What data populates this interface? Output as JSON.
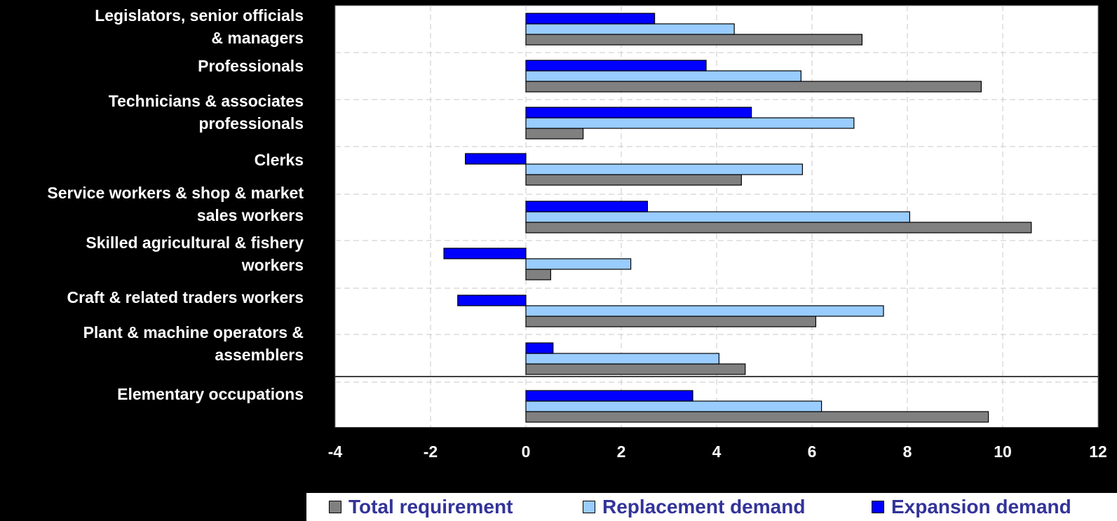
{
  "chart_data": {
    "type": "bar",
    "orientation": "horizontal",
    "categories": [
      [
        "Legislators, senior officials",
        "& managers"
      ],
      [
        "Professionals"
      ],
      [
        "Technicians & associates",
        "professionals"
      ],
      [
        "Clerks"
      ],
      [
        "Service workers & shop & market",
        "sales workers"
      ],
      [
        "Skilled agricultural & fishery",
        "workers"
      ],
      [
        "Craft  & related traders workers"
      ],
      [
        "Plant & machine operators &",
        "assemblers"
      ],
      [
        "Elementary occupations"
      ]
    ],
    "series": [
      {
        "name": "Total requirement",
        "color": "#808080",
        "values": [
          7.05,
          9.55,
          1.2,
          4.52,
          10.6,
          0.52,
          6.08,
          4.6,
          9.7
        ]
      },
      {
        "name": "Replacement demand",
        "color": "#99CCFF",
        "values": [
          4.37,
          5.77,
          6.88,
          5.8,
          8.05,
          2.2,
          7.5,
          4.05,
          6.2
        ]
      },
      {
        "name": "Expansion demand",
        "color": "#0000FF",
        "values": [
          2.7,
          3.78,
          4.73,
          -1.27,
          2.55,
          -1.72,
          -1.43,
          0.57,
          3.5
        ]
      }
    ],
    "xlim": [
      -4,
      12
    ],
    "xticks": [
      "-4",
      "-2",
      "0",
      "2",
      "4",
      "6",
      "8",
      "10",
      "12"
    ],
    "grid": true,
    "legend_position": "bottom"
  }
}
